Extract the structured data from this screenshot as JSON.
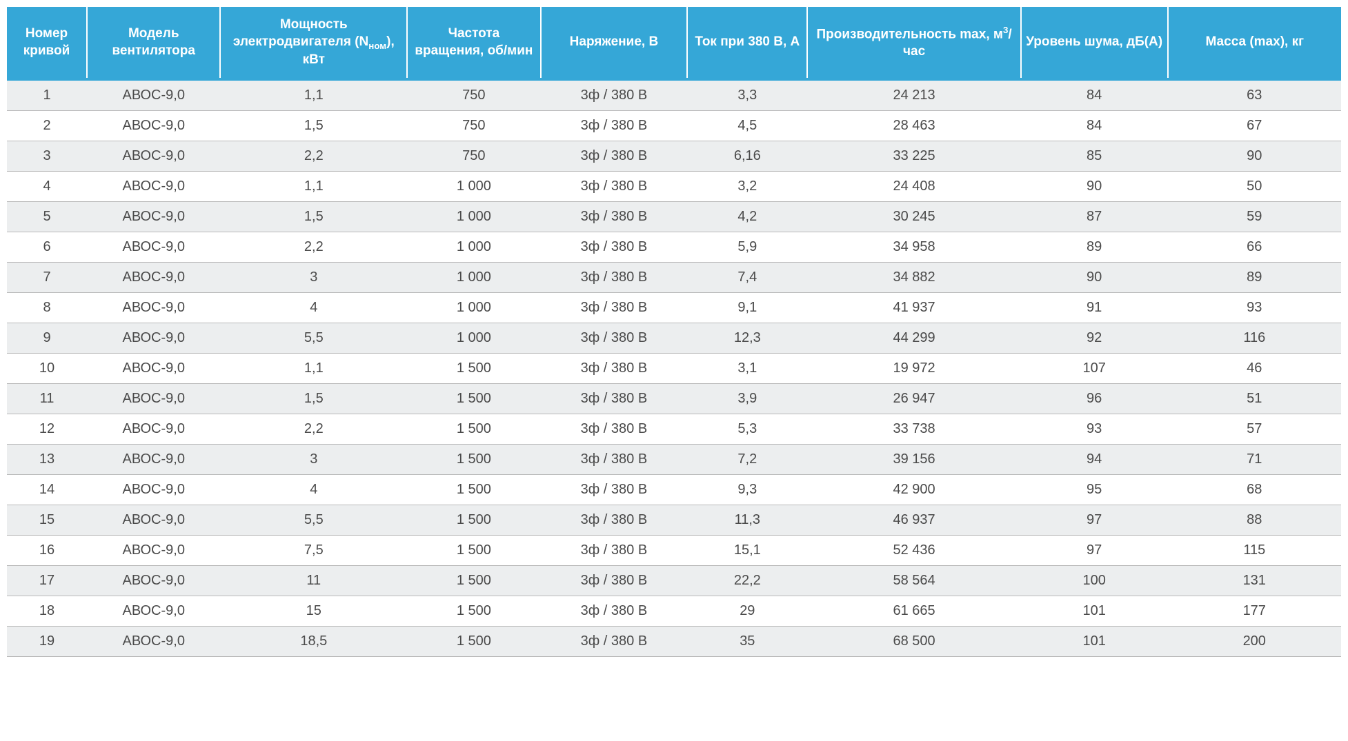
{
  "table": {
    "header_background": "#35a7d7",
    "header_color": "#ffffff",
    "row_odd_bg": "#eceeef",
    "row_even_bg": "#ffffff",
    "text_color": "#4a4a4a",
    "border_color": "#b8b8b8",
    "header_fontsize": 19,
    "cell_fontsize": 20,
    "columns": [
      {
        "label": "Номер кривой",
        "width": "6%"
      },
      {
        "label": "Модель вентилятора",
        "width": "10%"
      },
      {
        "label": "Мощность электродвигателя (Nном), кВт",
        "width": "14%"
      },
      {
        "label": "Частота вращения, об/мин",
        "width": "10%"
      },
      {
        "label": "Наряжение, В",
        "width": "11%"
      },
      {
        "label": "Ток при 380 В, А",
        "width": "9%"
      },
      {
        "label": "Производительность max, м³/час",
        "width": "16%"
      },
      {
        "label": "Уровень шума, дБ(А)",
        "width": "11%"
      },
      {
        "label": "Масса (max), кг",
        "width": "13%"
      }
    ],
    "rows": [
      [
        "1",
        "АВОС-9,0",
        "1,1",
        "750",
        "3ф / 380 В",
        "3,3",
        "24 213",
        "84",
        "63"
      ],
      [
        "2",
        "АВОС-9,0",
        "1,5",
        "750",
        "3ф / 380 В",
        "4,5",
        "28 463",
        "84",
        "67"
      ],
      [
        "3",
        "АВОС-9,0",
        "2,2",
        "750",
        "3ф / 380 В",
        "6,16",
        "33 225",
        "85",
        "90"
      ],
      [
        "4",
        "АВОС-9,0",
        "1,1",
        "1 000",
        "3ф / 380 В",
        "3,2",
        "24 408",
        "90",
        "50"
      ],
      [
        "5",
        "АВОС-9,0",
        "1,5",
        "1 000",
        "3ф / 380 В",
        "4,2",
        "30 245",
        "87",
        "59"
      ],
      [
        "6",
        "АВОС-9,0",
        "2,2",
        "1 000",
        "3ф / 380 В",
        "5,9",
        "34 958",
        "89",
        "66"
      ],
      [
        "7",
        "АВОС-9,0",
        "3",
        "1 000",
        "3ф / 380 В",
        "7,4",
        "34 882",
        "90",
        "89"
      ],
      [
        "8",
        "АВОС-9,0",
        "4",
        "1 000",
        "3ф / 380 В",
        "9,1",
        "41 937",
        "91",
        "93"
      ],
      [
        "9",
        "АВОС-9,0",
        "5,5",
        "1 000",
        "3ф / 380 В",
        "12,3",
        "44 299",
        "92",
        "116"
      ],
      [
        "10",
        "АВОС-9,0",
        "1,1",
        "1 500",
        "3ф / 380 В",
        "3,1",
        "19 972",
        "107",
        "46"
      ],
      [
        "11",
        "АВОС-9,0",
        "1,5",
        "1 500",
        "3ф / 380 В",
        "3,9",
        "26 947",
        "96",
        "51"
      ],
      [
        "12",
        "АВОС-9,0",
        "2,2",
        "1 500",
        "3ф / 380 В",
        "5,3",
        "33 738",
        "93",
        "57"
      ],
      [
        "13",
        "АВОС-9,0",
        "3",
        "1 500",
        "3ф / 380 В",
        "7,2",
        "39 156",
        "94",
        "71"
      ],
      [
        "14",
        "АВОС-9,0",
        "4",
        "1 500",
        "3ф / 380 В",
        "9,3",
        "42 900",
        "95",
        "68"
      ],
      [
        "15",
        "АВОС-9,0",
        "5,5",
        "1 500",
        "3ф / 380 В",
        "11,3",
        "46 937",
        "97",
        "88"
      ],
      [
        "16",
        "АВОС-9,0",
        "7,5",
        "1 500",
        "3ф / 380 В",
        "15,1",
        "52 436",
        "97",
        "115"
      ],
      [
        "17",
        "АВОС-9,0",
        "11",
        "1 500",
        "3ф / 380 В",
        "22,2",
        "58 564",
        "100",
        "131"
      ],
      [
        "18",
        "АВОС-9,0",
        "15",
        "1 500",
        "3ф / 380 В",
        "29",
        "61 665",
        "101",
        "177"
      ],
      [
        "19",
        "АВОС-9,0",
        "18,5",
        "1 500",
        "3ф / 380 В",
        "35",
        "68 500",
        "101",
        "200"
      ]
    ]
  }
}
